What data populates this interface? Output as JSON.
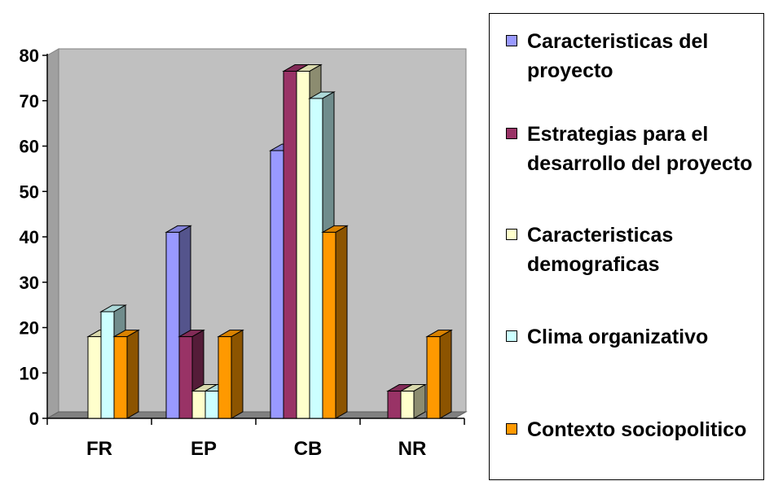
{
  "chart_data": {
    "type": "bar",
    "categories": [
      "FR",
      "EP",
      "CB",
      "NR"
    ],
    "series": [
      {
        "name": "Caracteristicas del proyecto",
        "values": [
          0,
          41,
          59,
          0
        ],
        "color": "#9999FF"
      },
      {
        "name": "Estrategias para el desarrollo del proyecto",
        "values": [
          0,
          18,
          76.5,
          6
        ],
        "color": "#993366"
      },
      {
        "name": "Caracteristicas demograficas",
        "values": [
          18,
          6,
          76.5,
          6
        ],
        "color": "#FFFFCC"
      },
      {
        "name": "Clima organizativo",
        "values": [
          23.5,
          6,
          70.5,
          0
        ],
        "color": "#CCFFFF"
      },
      {
        "name": "Contexto sociopolitico",
        "values": [
          18,
          18,
          41,
          18
        ],
        "color": "#FF9900"
      }
    ],
    "yticks": [
      "0",
      "10",
      "20",
      "30",
      "40",
      "50",
      "60",
      "70",
      "80"
    ],
    "ylim": [
      0,
      80
    ],
    "grid": false,
    "plot_background": "#C0C0C0",
    "legend_position": "right",
    "three_d": true
  }
}
